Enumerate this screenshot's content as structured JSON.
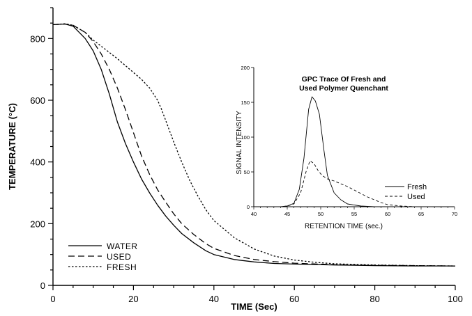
{
  "chart_data": [
    {
      "type": "line",
      "xlabel": "TIME (Sec)",
      "ylabel": "TEMPERATURE (°C)",
      "xlim": [
        0,
        100
      ],
      "ylim": [
        0,
        900
      ],
      "xticks": [
        0,
        20,
        40,
        60,
        80,
        100
      ],
      "yticks": [
        0,
        200,
        400,
        600,
        800
      ],
      "grid": false,
      "legend_position": "bottom-left",
      "series": [
        {
          "name": "WATER",
          "style": "solid",
          "x": [
            0,
            3,
            5,
            8,
            10,
            12,
            14,
            16,
            18,
            20,
            22,
            24,
            26,
            28,
            30,
            32,
            35,
            38,
            40,
            45,
            50,
            55,
            60,
            70,
            80,
            90,
            100
          ],
          "y": [
            845,
            847,
            840,
            800,
            760,
            700,
            620,
            530,
            460,
            400,
            345,
            300,
            260,
            225,
            195,
            168,
            138,
            112,
            100,
            84,
            76,
            71,
            69,
            66,
            64,
            63,
            63
          ]
        },
        {
          "name": "USED",
          "style": "dashed",
          "x": [
            0,
            3,
            5,
            8,
            10,
            12,
            14,
            16,
            18,
            20,
            22,
            24,
            26,
            28,
            30,
            32,
            35,
            38,
            40,
            45,
            50,
            55,
            60,
            70,
            80,
            90,
            100
          ],
          "y": [
            845,
            847,
            843,
            820,
            790,
            750,
            700,
            640,
            570,
            495,
            420,
            360,
            310,
            270,
            232,
            200,
            165,
            135,
            120,
            97,
            84,
            77,
            72,
            67,
            65,
            64,
            63
          ]
        },
        {
          "name": "FRESH",
          "style": "dotted",
          "x": [
            0,
            3,
            5,
            8,
            10,
            12,
            14,
            16,
            18,
            20,
            22,
            24,
            26,
            27,
            28,
            30,
            32,
            34,
            36,
            38,
            40,
            45,
            50,
            55,
            60,
            65,
            70,
            80,
            90,
            100
          ],
          "y": [
            845,
            848,
            843,
            820,
            795,
            775,
            755,
            735,
            712,
            690,
            668,
            640,
            600,
            570,
            535,
            465,
            400,
            340,
            290,
            245,
            210,
            155,
            118,
            95,
            82,
            75,
            70,
            66,
            64,
            63
          ]
        }
      ]
    },
    {
      "type": "line",
      "title": "GPC Trace Of Fresh and\nUsed Polymer Quenchant",
      "xlabel": "RETENTION TIME (sec.)",
      "ylabel": "SIGNAL  INTENSITY",
      "xlim": [
        40,
        70
      ],
      "ylim": [
        0,
        200
      ],
      "xticks": [
        40,
        45,
        50,
        55,
        60,
        65,
        70
      ],
      "yticks": [
        0,
        50,
        100,
        150,
        200
      ],
      "grid": false,
      "legend_position": "bottom-right",
      "series": [
        {
          "name": "Fresh",
          "style": "solid",
          "x": [
            40,
            44,
            45,
            46,
            46.8,
            47.5,
            48.2,
            48.7,
            49.2,
            49.8,
            50.5,
            51,
            52,
            53,
            54,
            56,
            58,
            60,
            70
          ],
          "y": [
            0,
            0,
            1,
            5,
            25,
            70,
            140,
            158,
            152,
            133,
            80,
            45,
            20,
            10,
            4,
            1,
            0,
            0,
            0
          ]
        },
        {
          "name": "Used",
          "style": "dashed",
          "x": [
            40,
            44,
            45,
            46,
            47,
            47.8,
            48.4,
            49,
            49.6,
            50.2,
            51,
            52,
            53,
            54,
            55,
            56,
            57,
            58,
            59,
            60,
            62,
            64,
            66,
            70
          ],
          "y": [
            0,
            0,
            1,
            4,
            20,
            50,
            66,
            62,
            52,
            45,
            40,
            37,
            33,
            29,
            24,
            19,
            14,
            10,
            6,
            3,
            1,
            0,
            0,
            0
          ]
        }
      ]
    }
  ]
}
